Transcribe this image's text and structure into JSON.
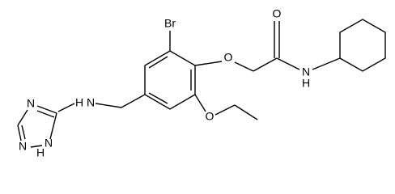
{
  "atoms": [
    {
      "symbol": "Br"
    },
    {
      "symbol": "O"
    },
    {
      "symbol": "O"
    },
    {
      "symbol": "N",
      "hydrogen": "H"
    },
    {
      "symbol": "O"
    },
    {
      "symbol": "N",
      "hydrogen": "H"
    },
    {
      "symbol": "N"
    },
    {
      "symbol": "N"
    },
    {
      "symbol": "N",
      "hydrogen": "H"
    }
  ]
}
